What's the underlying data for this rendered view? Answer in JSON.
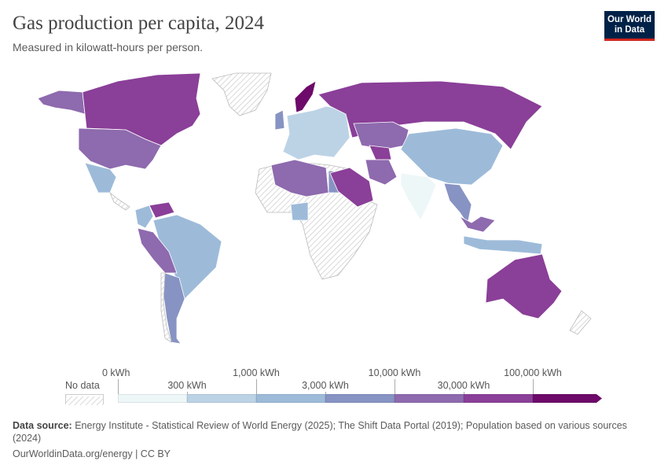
{
  "header": {
    "title": "Gas production per capita, 2024",
    "subtitle": "Measured in kilowatt-hours per person.",
    "logo": "Our World in Data"
  },
  "chart_data": {
    "type": "choropleth",
    "unit": "kWh",
    "legend": {
      "no_data_label": "No data",
      "thresholds": [
        "0 kWh",
        "300 kWh",
        "1,000 kWh",
        "3,000 kWh",
        "10,000 kWh",
        "30,000 kWh",
        "100,000 kWh"
      ],
      "colors": [
        "#eef7f8",
        "#bcd3e6",
        "#9dbbd9",
        "#8793c3",
        "#8e6aae",
        "#8a3f98",
        "#6d0a6a"
      ],
      "no_data_color": "hatched"
    },
    "regions": [
      {
        "id": "alaska",
        "bin": 4
      },
      {
        "id": "canada",
        "bin": 5
      },
      {
        "id": "usa",
        "bin": 4
      },
      {
        "id": "greenland",
        "bin": null
      },
      {
        "id": "mexico",
        "bin": 2
      },
      {
        "id": "central-america",
        "bin": null
      },
      {
        "id": "colombia",
        "bin": 2
      },
      {
        "id": "venezuela",
        "bin": 5
      },
      {
        "id": "brazil",
        "bin": 2
      },
      {
        "id": "peru-bolivia",
        "bin": 4
      },
      {
        "id": "argentina",
        "bin": 3
      },
      {
        "id": "chile",
        "bin": null
      },
      {
        "id": "africa",
        "bin": null
      },
      {
        "id": "algeria-libya",
        "bin": 4
      },
      {
        "id": "egypt",
        "bin": 3
      },
      {
        "id": "nigeria",
        "bin": 2
      },
      {
        "id": "uk",
        "bin": 3
      },
      {
        "id": "norway",
        "bin": 6
      },
      {
        "id": "europe",
        "bin": 1
      },
      {
        "id": "russia",
        "bin": 5
      },
      {
        "id": "kazakhstan",
        "bin": 4
      },
      {
        "id": "turkmenistan",
        "bin": 5
      },
      {
        "id": "middle-east",
        "bin": 5
      },
      {
        "id": "iran",
        "bin": 4
      },
      {
        "id": "china",
        "bin": 2
      },
      {
        "id": "india",
        "bin": 0
      },
      {
        "id": "southeast-asia",
        "bin": 3
      },
      {
        "id": "indonesia",
        "bin": 2
      },
      {
        "id": "malaysia",
        "bin": 4
      },
      {
        "id": "australia",
        "bin": 5
      },
      {
        "id": "new-zealand",
        "bin": null
      }
    ]
  },
  "footer": {
    "source_label": "Data source:",
    "source_text": "Energy Institute - Statistical Review of World Energy (2025); The Shift Data Portal (2019); Population based on various sources (2024)",
    "url": "OurWorldinData.org/energy | CC BY"
  }
}
